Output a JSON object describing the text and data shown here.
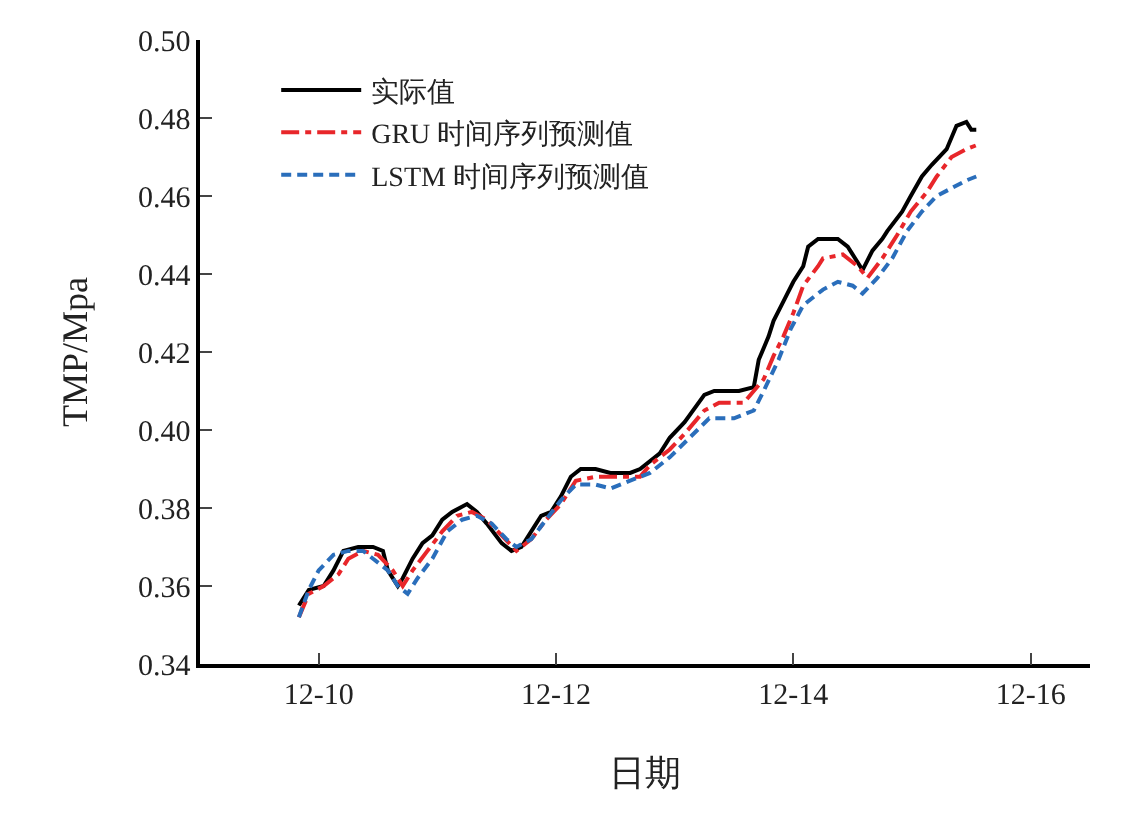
{
  "chart_data": {
    "type": "line",
    "xlabel": "日期",
    "ylabel": "TMP/Mpa",
    "xlim": [
      "--12-09T00:00",
      "--12-16T12:00"
    ],
    "xticks": [
      {
        "value": "--12-10",
        "label": "12-10"
      },
      {
        "value": "--12-12",
        "label": "12-12"
      },
      {
        "value": "--12-14",
        "label": "12-14"
      },
      {
        "value": "--12-16",
        "label": "12-16"
      }
    ],
    "ylim": [
      0.34,
      0.5
    ],
    "yticks": [
      {
        "value": 0.34,
        "label": "0.34"
      },
      {
        "value": 0.36,
        "label": "0.36"
      },
      {
        "value": 0.38,
        "label": "0.38"
      },
      {
        "value": 0.4,
        "label": "0.40"
      },
      {
        "value": 0.42,
        "label": "0.42"
      },
      {
        "value": 0.44,
        "label": "0.44"
      },
      {
        "value": 0.46,
        "label": "0.46"
      },
      {
        "value": 0.48,
        "label": "0.48"
      },
      {
        "value": 0.5,
        "label": "0.50"
      }
    ],
    "legend": "top left",
    "marker": "none",
    "series": [
      {
        "name": "实际值",
        "color": "#000000",
        "line_style": "solid",
        "x": [
          "--12-09T20:00",
          "--12-09T22:00",
          "--12-10T01:00",
          "--12-10T03:00",
          "--12-10T05:00",
          "--12-10T08:00",
          "--12-10T11:00",
          "--12-10T13:00",
          "--12-10T14:00",
          "--12-10T16:00",
          "--12-10T17:00",
          "--12-10T19:00",
          "--12-10T21:00",
          "--12-10T23:00",
          "--12-11T01:00",
          "--12-11T03:00",
          "--12-11T06:00",
          "--12-11T08:00",
          "--12-11T10:00",
          "--12-11T13:00",
          "--12-11T15:00",
          "--12-11T17:00",
          "--12-11T19:00",
          "--12-11T21:00",
          "--12-11T23:00",
          "--12-12T01:00",
          "--12-12T03:00",
          "--12-12T05:00",
          "--12-12T08:00",
          "--12-12T11:00",
          "--12-12T15:00",
          "--12-12T17:00",
          "--12-12T21:00",
          "--12-12T23:00",
          "--12-13T02:00",
          "--12-13T06:00",
          "--12-13T08:00",
          "--12-13T13:00",
          "--12-13T16:00",
          "--12-13T17:00",
          "--12-13T19:00",
          "--12-13T20:00",
          "--12-13T22:00",
          "--12-14T00:00",
          "--12-14T02:00",
          "--12-14T03:00",
          "--12-14T05:00",
          "--12-14T09:00",
          "--12-14T11:00",
          "--12-14T13:00",
          "--12-14T14:00",
          "--12-14T16:00",
          "--12-14T18:00",
          "--12-14T19:00",
          "--12-14T22:00",
          "--12-14T23:45",
          "--12-15T02:00",
          "--12-15T04:00",
          "--12-15T07:00",
          "--12-15T09:00",
          "--12-15T11:00",
          "--12-15T12:00",
          "--12-15T13:00"
        ],
        "values": [
          0.355,
          0.359,
          0.36,
          0.364,
          0.369,
          0.37,
          0.37,
          0.369,
          0.364,
          0.36,
          0.362,
          0.367,
          0.371,
          0.373,
          0.377,
          0.379,
          0.381,
          0.379,
          0.376,
          0.371,
          0.369,
          0.37,
          0.374,
          0.378,
          0.379,
          0.383,
          0.388,
          0.39,
          0.39,
          0.389,
          0.389,
          0.39,
          0.394,
          0.398,
          0.402,
          0.409,
          0.41,
          0.41,
          0.411,
          0.418,
          0.424,
          0.428,
          0.433,
          0.438,
          0.442,
          0.447,
          0.449,
          0.449,
          0.447,
          0.443,
          0.441,
          0.446,
          0.449,
          0.451,
          0.456,
          0.46,
          0.465,
          0.468,
          0.472,
          0.478,
          0.479,
          0.477,
          0.477
        ]
      },
      {
        "name": "GRU 时间序列预测值",
        "color": "#e8262a",
        "line_style": "dashdot",
        "x": [
          "--12-09T20:00",
          "--12-09T22:00",
          "--12-10T01:00",
          "--12-10T04:00",
          "--12-10T06:00",
          "--12-10T09:00",
          "--12-10T12:00",
          "--12-10T15:00",
          "--12-10T17:00",
          "--12-10T19:00",
          "--12-10T22:00",
          "--12-11T01:00",
          "--12-11T04:00",
          "--12-11T07:00",
          "--12-11T10:00",
          "--12-11T13:00",
          "--12-11T16:00",
          "--12-11T19:00",
          "--12-11T22:00",
          "--12-12T01:00",
          "--12-12T04:00",
          "--12-12T08:00",
          "--12-12T11:00",
          "--12-12T17:00",
          "--12-12T19:00",
          "--12-12T23:00",
          "--12-13T02:00",
          "--12-13T06:00",
          "--12-13T09:00",
          "--12-13T14:00",
          "--12-13T18:00",
          "--12-13T20:00",
          "--12-13T22:00",
          "--12-14T00:00",
          "--12-14T02:00",
          "--12-14T05:00",
          "--12-14T06:00",
          "--12-14T10:00",
          "--12-14T13:00",
          "--12-14T15:00",
          "--12-14T18:00",
          "--12-14T21:00",
          "--12-14T23:45",
          "--12-15T03:00",
          "--12-15T05:00",
          "--12-15T08:00",
          "--12-15T11:00",
          "--12-15T13:00"
        ],
        "values": [
          0.352,
          0.358,
          0.36,
          0.363,
          0.367,
          0.369,
          0.368,
          0.364,
          0.36,
          0.364,
          0.369,
          0.374,
          0.378,
          0.379,
          0.377,
          0.373,
          0.369,
          0.372,
          0.377,
          0.381,
          0.387,
          0.388,
          0.388,
          0.388,
          0.391,
          0.395,
          0.399,
          0.405,
          0.407,
          0.407,
          0.413,
          0.419,
          0.424,
          0.43,
          0.437,
          0.442,
          0.444,
          0.445,
          0.442,
          0.439,
          0.444,
          0.45,
          0.456,
          0.461,
          0.465,
          0.47,
          0.472,
          0.473
        ]
      },
      {
        "name": "LSTM 时间序列预测值",
        "color": "#2a6ebb",
        "line_style": "dashed",
        "x": [
          "--12-09T20:00",
          "--12-09T22:00",
          "--12-10T00:00",
          "--12-10T03:00",
          "--12-10T06:00",
          "--12-10T09:00",
          "--12-10T11:00",
          "--12-10T14:00",
          "--12-10T16:00",
          "--12-10T18:00",
          "--12-10T20:00",
          "--12-10T23:00",
          "--12-11T02:00",
          "--12-11T05:00",
          "--12-11T08:00",
          "--12-11T11:00",
          "--12-11T14:00",
          "--12-11T16:00",
          "--12-11T19:00",
          "--12-11T22:00",
          "--12-12T01:00",
          "--12-12T04:00",
          "--12-12T08:00",
          "--12-12T11:00",
          "--12-12T15:00",
          "--12-12T19:00",
          "--12-12T23:00",
          "--12-13T03:00",
          "--12-13T07:00",
          "--12-13T12:00",
          "--12-13T16:00",
          "--12-13T18:00",
          "--12-13T21:00",
          "--12-13T23:30",
          "--12-14T02:00",
          "--12-14T06:00",
          "--12-14T09:00",
          "--12-14T12:00",
          "--12-14T14:00",
          "--12-14T17:00",
          "--12-14T20:00",
          "--12-14T23:00",
          "--12-15T02:00",
          "--12-15T05:00",
          "--12-15T08:00",
          "--12-15T11:00",
          "--12-15T13:00"
        ],
        "values": [
          0.352,
          0.359,
          0.364,
          0.368,
          0.369,
          0.369,
          0.367,
          0.364,
          0.36,
          0.358,
          0.362,
          0.367,
          0.374,
          0.377,
          0.378,
          0.376,
          0.372,
          0.37,
          0.372,
          0.377,
          0.382,
          0.386,
          0.386,
          0.385,
          0.387,
          0.389,
          0.393,
          0.398,
          0.403,
          0.403,
          0.405,
          0.41,
          0.418,
          0.426,
          0.432,
          0.436,
          0.438,
          0.437,
          0.435,
          0.439,
          0.444,
          0.451,
          0.456,
          0.46,
          0.462,
          0.464,
          0.465
        ]
      }
    ]
  }
}
